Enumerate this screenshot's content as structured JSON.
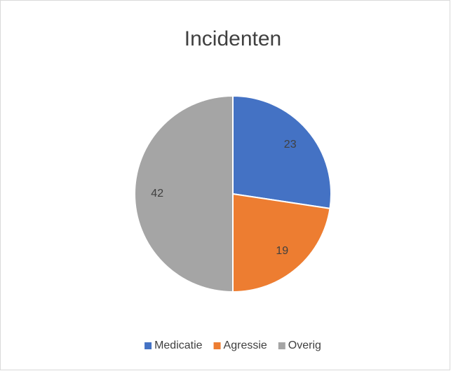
{
  "chart_data": {
    "type": "pie",
    "title": "Incidenten",
    "categories": [
      "Medicatie",
      "Agressie",
      "Overig"
    ],
    "values": [
      23,
      19,
      42
    ],
    "colors": [
      "#4472c4",
      "#ed7d31",
      "#a5a5a5"
    ],
    "legend": "bottom"
  }
}
